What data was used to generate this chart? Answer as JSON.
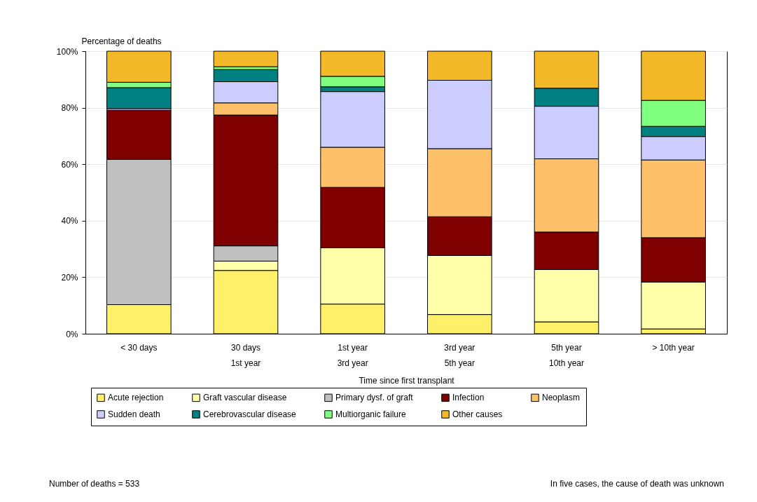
{
  "chart_data": {
    "type": "bar",
    "stacked": true,
    "categories": [
      "< 30 days",
      "30 days\n1st year",
      "1st year\n3rd year",
      "3rd year\n5th year",
      "5th year\n10th year",
      "> 10th year"
    ],
    "xlabel": "Time since first transplant",
    "ylabel": "Percentage of deaths",
    "ylim": [
      0,
      100
    ],
    "yticks": [
      {
        "value": 0,
        "label": "0%"
      },
      {
        "value": 20,
        "label": "20%"
      },
      {
        "value": 40,
        "label": "40%"
      },
      {
        "value": 60,
        "label": "60%"
      },
      {
        "value": 80,
        "label": "80%"
      },
      {
        "value": 100,
        "label": "100%"
      }
    ],
    "grid": "y",
    "legend": "bottom",
    "annotations": [
      "Number of deaths = 533",
      "In five cases, the cause of death was unknown"
    ],
    "series": [
      {
        "name": "Acute rejection",
        "color": "#fff06a",
        "values": [
          10.3,
          22.4,
          10.5,
          6.8,
          4.2,
          1.7
        ]
      },
      {
        "name": "Graft vascular disease",
        "color": "#ffffaa",
        "values": [
          null,
          3.3,
          19.9,
          20.9,
          18.5,
          16.6
        ]
      },
      {
        "name": "Primary dysf. of graft",
        "color": "#c0c0c0",
        "values": [
          51.4,
          5.4,
          null,
          null,
          null,
          null
        ]
      },
      {
        "name": "Infection",
        "color": "#800000",
        "values": [
          17.4,
          46.3,
          21.4,
          13.7,
          13.3,
          15.7
        ]
      },
      {
        "name": "Neoplasm",
        "color": "#ffc06a",
        "values": [
          null,
          4.3,
          14.2,
          24.1,
          25.9,
          27.5
        ]
      },
      {
        "name": "Sudden death",
        "color": "#ccccff",
        "values": [
          0.6,
          7.5,
          19.7,
          24.2,
          18.6,
          8.3
        ]
      },
      {
        "name": "Cerebrovascular disease",
        "color": "#008080",
        "values": [
          7.4,
          4.3,
          1.7,
          null,
          6.4,
          3.6
        ]
      },
      {
        "name": "Multiorganic failure",
        "color": "#80ff80",
        "values": [
          1.9,
          1.0,
          3.7,
          null,
          null,
          9.2
        ]
      },
      {
        "name": "Other causes",
        "color": "#f4b928",
        "values": [
          11.0,
          5.5,
          8.9,
          10.3,
          13.1,
          17.4
        ]
      }
    ]
  }
}
